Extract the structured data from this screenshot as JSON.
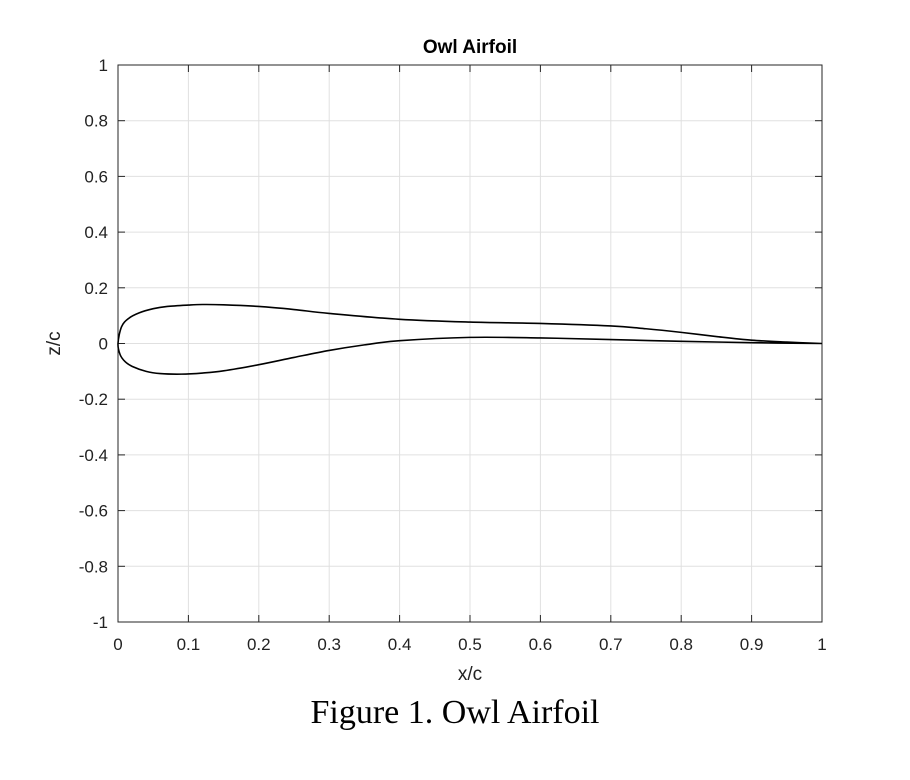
{
  "chart_data": {
    "type": "line",
    "title": "Owl Airfoil",
    "xlabel": "x/c",
    "ylabel": "z/c",
    "xlim": [
      0,
      1
    ],
    "ylim": [
      -1,
      1
    ],
    "xticks": [
      0,
      0.1,
      0.2,
      0.3,
      0.4,
      0.5,
      0.6,
      0.7,
      0.8,
      0.9,
      1
    ],
    "xtick_labels": [
      "0",
      "0.1",
      "0.2",
      "0.3",
      "0.4",
      "0.5",
      "0.6",
      "0.7",
      "0.8",
      "0.9",
      "1"
    ],
    "yticks": [
      1,
      0.8,
      0.6,
      0.4,
      0.2,
      0,
      -0.2,
      -0.4,
      -0.6,
      -0.8,
      -1
    ],
    "ytick_labels": [
      "1",
      "0.8",
      "0.6",
      "0.4",
      "0.2",
      "0",
      "-0.2",
      "-0.4",
      "-0.6",
      "-0.8",
      "-1"
    ],
    "grid": true,
    "line_color": "#000000",
    "series": [
      {
        "x": [
          1.0,
          0.95,
          0.9,
          0.85,
          0.8,
          0.75,
          0.7,
          0.6,
          0.5,
          0.4,
          0.3,
          0.25,
          0.2,
          0.15,
          0.12,
          0.1,
          0.07,
          0.05,
          0.03,
          0.015,
          0.005,
          0.0,
          0.003,
          0.01,
          0.02,
          0.04,
          0.06,
          0.09,
          0.12,
          0.15,
          0.2,
          0.25,
          0.3,
          0.35,
          0.4,
          0.5,
          0.6,
          0.7,
          0.8,
          0.9,
          1.0
        ],
        "y": [
          0.0,
          0.005,
          0.012,
          0.025,
          0.04,
          0.053,
          0.063,
          0.072,
          0.077,
          0.087,
          0.108,
          0.122,
          0.133,
          0.139,
          0.14,
          0.138,
          0.133,
          0.125,
          0.11,
          0.09,
          0.06,
          0.0,
          -0.04,
          -0.065,
          -0.082,
          -0.1,
          -0.108,
          -0.11,
          -0.106,
          -0.098,
          -0.076,
          -0.05,
          -0.025,
          -0.005,
          0.01,
          0.022,
          0.02,
          0.014,
          0.008,
          0.003,
          0.0
        ]
      }
    ]
  },
  "caption": "Figure 1. Owl Airfoil"
}
